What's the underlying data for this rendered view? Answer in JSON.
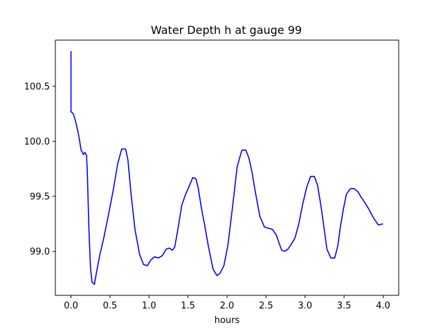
{
  "chart_data": {
    "type": "line",
    "title": "Water Depth h at gauge 99",
    "xlabel": "hours",
    "ylabel": "",
    "xlim": [
      -0.2,
      4.2
    ],
    "ylim": [
      98.6,
      100.92
    ],
    "xticks": [
      0.0,
      0.5,
      1.0,
      1.5,
      2.0,
      2.5,
      3.0,
      3.5,
      4.0
    ],
    "xtick_labels": [
      "0.0",
      "0.5",
      "1.0",
      "1.5",
      "2.0",
      "2.5",
      "3.0",
      "3.5",
      "4.0"
    ],
    "yticks": [
      99.0,
      99.5,
      100.0,
      100.5
    ],
    "ytick_labels": [
      "99.0",
      "99.5",
      "100.0",
      "100.5"
    ],
    "grid": false,
    "series": [
      {
        "color": "#0000ff",
        "x": [
          0.0,
          0.0,
          0.0,
          0.03,
          0.06,
          0.1,
          0.13,
          0.16,
          0.18,
          0.2,
          0.21,
          0.23,
          0.25,
          0.27,
          0.3,
          0.33,
          0.37,
          0.42,
          0.48,
          0.54,
          0.6,
          0.65,
          0.7,
          0.73,
          0.77,
          0.82,
          0.88,
          0.93,
          0.98,
          1.02,
          1.07,
          1.12,
          1.17,
          1.22,
          1.26,
          1.3,
          1.33,
          1.37,
          1.42,
          1.47,
          1.52,
          1.56,
          1.6,
          1.63,
          1.67,
          1.71,
          1.76,
          1.82,
          1.87,
          1.91,
          1.96,
          2.01,
          2.07,
          2.13,
          2.19,
          2.24,
          2.28,
          2.32,
          2.36,
          2.42,
          2.48,
          2.53,
          2.58,
          2.63,
          2.67,
          2.7,
          2.74,
          2.78,
          2.82,
          2.87,
          2.92,
          2.97,
          3.02,
          3.07,
          3.12,
          3.16,
          3.2,
          3.24,
          3.28,
          3.33,
          3.38,
          3.42,
          3.45,
          3.49,
          3.53,
          3.58,
          3.63,
          3.68,
          3.72,
          3.76,
          3.82,
          3.88,
          3.94,
          4.0
        ],
        "y": [
          100.82,
          100.6,
          100.27,
          100.25,
          100.18,
          100.05,
          99.92,
          99.88,
          99.9,
          99.87,
          99.7,
          99.2,
          98.85,
          98.72,
          98.7,
          98.82,
          98.97,
          99.12,
          99.33,
          99.55,
          99.8,
          99.93,
          99.93,
          99.83,
          99.52,
          99.2,
          98.97,
          98.88,
          98.87,
          98.92,
          98.95,
          98.94,
          98.96,
          99.02,
          99.03,
          99.01,
          99.04,
          99.2,
          99.42,
          99.52,
          99.6,
          99.67,
          99.66,
          99.58,
          99.4,
          99.25,
          99.05,
          98.84,
          98.78,
          98.8,
          98.87,
          99.05,
          99.4,
          99.77,
          99.92,
          99.92,
          99.85,
          99.72,
          99.55,
          99.32,
          99.22,
          99.21,
          99.2,
          99.15,
          99.07,
          99.01,
          99.0,
          99.02,
          99.06,
          99.12,
          99.25,
          99.43,
          99.58,
          99.68,
          99.68,
          99.6,
          99.43,
          99.23,
          99.02,
          98.94,
          98.94,
          99.05,
          99.21,
          99.38,
          99.52,
          99.57,
          99.57,
          99.54,
          99.49,
          99.45,
          99.38,
          99.3,
          99.24,
          99.25
        ]
      }
    ]
  }
}
